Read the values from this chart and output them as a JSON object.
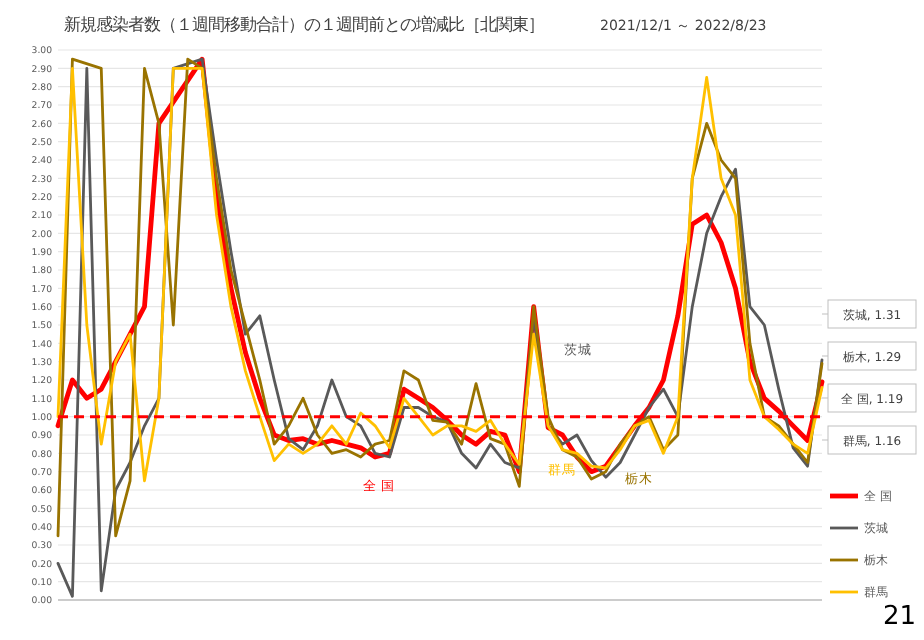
{
  "chart_data": {
    "type": "line",
    "title": "新規感染者数（１週間移動合計）の１週間前との増減比［北関東］",
    "subtitle": "2021/12/1 ～ 2022/8/23",
    "categories": [
      null,
      null,
      null,
      null,
      null,
      null,
      null,
      null,
      null,
      null,
      null,
      null,
      null,
      null,
      null,
      null,
      null,
      null,
      null,
      null,
      null,
      null,
      null,
      null,
      null,
      null,
      null,
      null,
      null,
      null,
      null,
      null,
      null,
      null,
      null,
      null,
      null,
      null,
      null,
      null,
      null,
      null,
      null,
      null,
      null,
      null,
      null,
      null,
      null,
      null,
      null,
      null,
      null,
      null
    ],
    "series": [
      {
        "name": "全 国",
        "color": "#ff0000",
        "values": [
          0.95,
          1.2,
          1.1,
          1.15,
          1.3,
          1.45,
          1.6,
          2.6,
          null,
          null,
          2.95,
          2.2,
          1.7,
          1.35,
          1.1,
          0.9,
          0.87,
          0.88,
          0.85,
          0.87,
          0.85,
          0.83,
          0.78,
          0.8,
          1.15,
          1.1,
          1.05,
          0.98,
          0.9,
          0.85,
          0.92,
          0.9,
          0.7,
          1.6,
          0.94,
          0.9,
          0.78,
          0.7,
          0.73,
          0.84,
          0.95,
          1.05,
          1.2,
          1.55,
          2.05,
          2.1,
          1.95,
          1.7,
          1.3,
          1.1,
          1.03,
          0.95,
          0.87,
          1.19
        ]
      },
      {
        "name": "茨城",
        "color": "#595959",
        "values": [
          0.2,
          0.02,
          2.9,
          0.05,
          0.6,
          0.75,
          0.95,
          1.1,
          2.9,
          null,
          2.95,
          2.4,
          1.9,
          1.45,
          1.55,
          1.2,
          0.88,
          0.82,
          0.95,
          1.2,
          1.0,
          0.95,
          0.8,
          0.78,
          1.05,
          1.05,
          1.0,
          0.97,
          0.8,
          0.72,
          0.85,
          0.75,
          0.72,
          1.55,
          0.95,
          0.85,
          0.9,
          0.76,
          0.67,
          0.75,
          0.9,
          1.05,
          1.15,
          1.0,
          1.6,
          2.0,
          2.2,
          2.35,
          1.6,
          1.5,
          1.15,
          0.83,
          0.73,
          1.31
        ]
      },
      {
        "name": "栃木",
        "color": "#997300",
        "values": [
          0.35,
          2.95,
          null,
          2.9,
          0.35,
          0.65,
          2.9,
          2.6,
          1.5,
          2.95,
          2.9,
          2.3,
          1.8,
          1.5,
          1.2,
          0.85,
          0.95,
          1.1,
          0.9,
          0.8,
          0.82,
          0.78,
          0.85,
          0.87,
          1.25,
          1.2,
          0.98,
          0.97,
          0.85,
          1.18,
          0.88,
          0.85,
          0.62,
          1.6,
          1.0,
          0.82,
          0.78,
          0.66,
          0.7,
          0.85,
          0.95,
          1.0,
          0.82,
          0.9,
          2.3,
          2.6,
          2.4,
          2.3,
          1.4,
          1.0,
          0.95,
          0.85,
          0.75,
          1.29
        ]
      },
      {
        "name": "群馬",
        "color": "#ffc000",
        "values": [
          1.0,
          2.9,
          1.5,
          0.85,
          1.3,
          1.45,
          0.65,
          1.1,
          2.9,
          null,
          2.9,
          2.1,
          1.6,
          1.25,
          1.0,
          0.76,
          0.85,
          0.8,
          0.85,
          0.95,
          0.85,
          1.02,
          0.95,
          0.83,
          1.1,
          1.0,
          0.9,
          0.95,
          0.95,
          0.92,
          0.98,
          0.85,
          0.74,
          1.45,
          0.95,
          0.82,
          0.8,
          0.73,
          0.72,
          0.82,
          0.95,
          0.98,
          0.8,
          1.0,
          2.3,
          2.85,
          2.3,
          2.1,
          1.2,
          1.0,
          0.93,
          0.85,
          0.8,
          1.16
        ]
      }
    ],
    "ylim": [
      0,
      3
    ],
    "yticks": [
      {
        "value": 0,
        "label": "0.00"
      },
      {
        "value": 0.1,
        "label": "0.10"
      },
      {
        "value": 0.2,
        "label": "0.20"
      },
      {
        "value": 0.3,
        "label": "0.30"
      },
      {
        "value": 0.4,
        "label": "0.40"
      },
      {
        "value": 0.5,
        "label": "0.50"
      },
      {
        "value": 0.6,
        "label": "0.60"
      },
      {
        "value": 0.7,
        "label": "0.70"
      },
      {
        "value": 0.8,
        "label": "0.80"
      },
      {
        "value": 0.9,
        "label": "0.90"
      },
      {
        "value": 1,
        "label": "1.00"
      },
      {
        "value": 1.1,
        "label": "1.10"
      },
      {
        "value": 1.2,
        "label": "1.20"
      },
      {
        "value": 1.3,
        "label": "1.30"
      },
      {
        "value": 1.4,
        "label": "1.40"
      },
      {
        "value": 1.5,
        "label": "1.50"
      },
      {
        "value": 1.6,
        "label": "1.60"
      },
      {
        "value": 1.7,
        "label": "1.70"
      },
      {
        "value": 1.8,
        "label": "1.80"
      },
      {
        "value": 1.9,
        "label": "1.90"
      },
      {
        "value": 2,
        "label": "2.00"
      },
      {
        "value": 2.1,
        "label": "2.10"
      },
      {
        "value": 2.2,
        "label": "2.20"
      },
      {
        "value": 2.3,
        "label": "2.30"
      },
      {
        "value": 2.4,
        "label": "2.40"
      },
      {
        "value": 2.5,
        "label": "2.50"
      },
      {
        "value": 2.6,
        "label": "2.60"
      },
      {
        "value": 2.7,
        "label": "2.70"
      },
      {
        "value": 2.8,
        "label": "2.80"
      },
      {
        "value": 2.9,
        "label": "2.90"
      },
      {
        "value": 3,
        "label": "3.00"
      }
    ],
    "ref_lines": [
      {
        "axis": "y",
        "value": 1,
        "color": "#ff0000",
        "line_style": "dashed"
      }
    ],
    "annotations": [
      "茨城, 1.31",
      "栃木, 1.29",
      "全 国, 1.19",
      "群馬, 1.16",
      "21"
    ],
    "grid": "y",
    "legend": "bottom right",
    "tick_labels": "y",
    "line_style": "solid",
    "marker": "none"
  }
}
